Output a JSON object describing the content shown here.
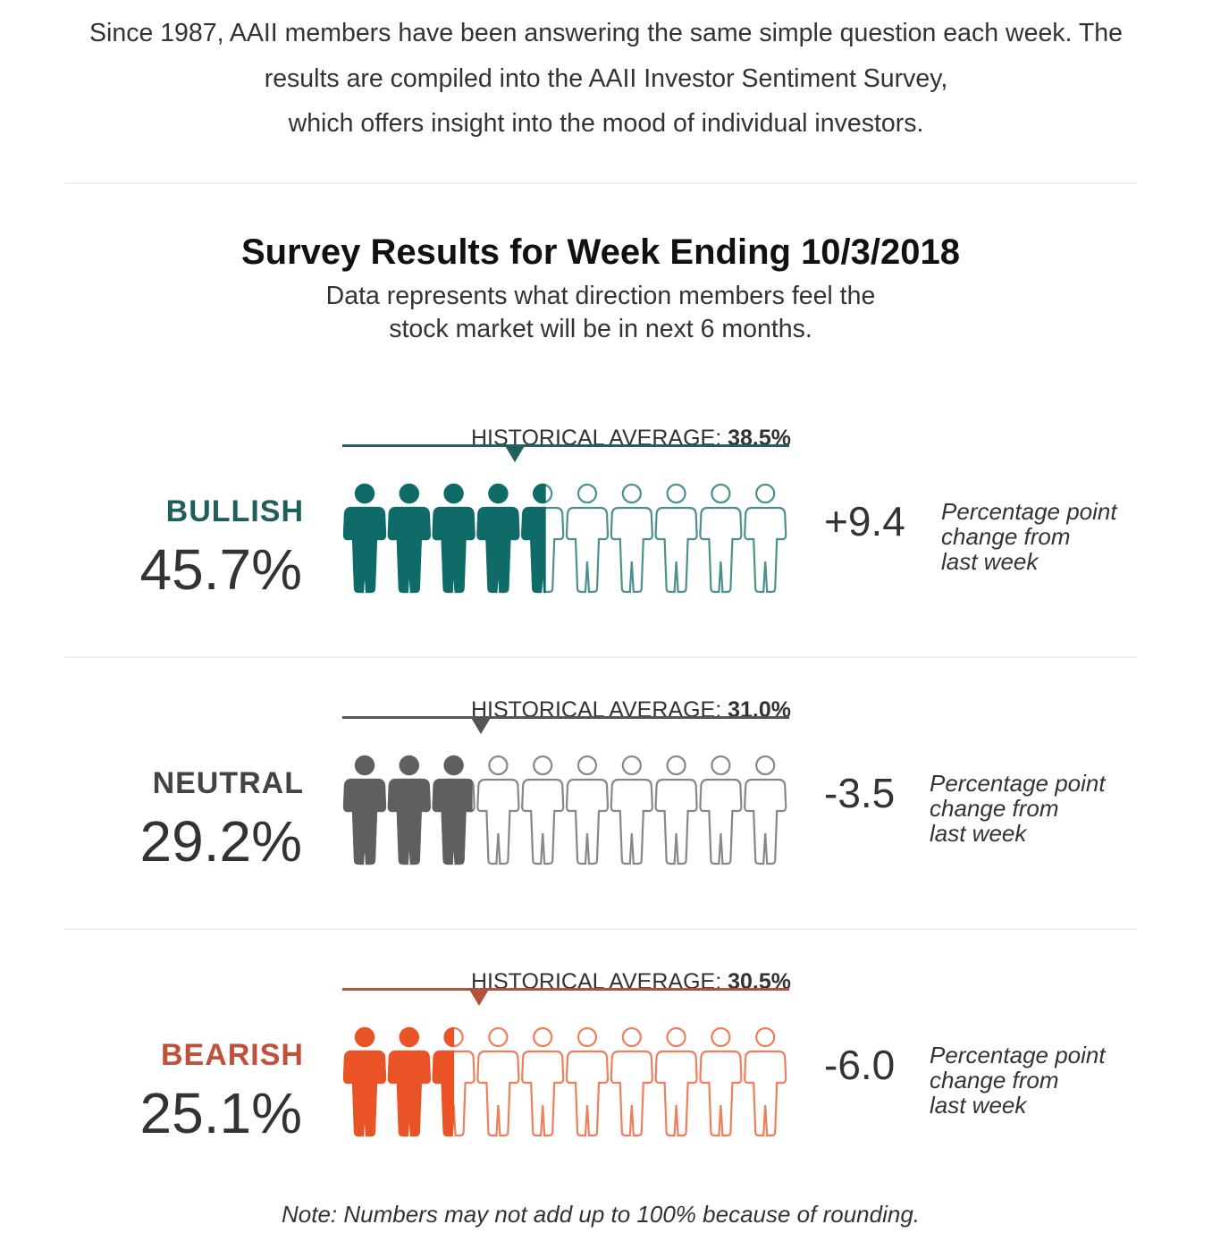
{
  "intro": {
    "line1": "Since 1987, AAII members have been answering the same simple question each week. The",
    "line2": "results are compiled into the AAII Investor Sentiment Survey,",
    "line3": "which offers insight into the mood of individual investors."
  },
  "title": "Survey Results for Week Ending 10/3/2018",
  "subtitle": {
    "line1": "Data represents what direction members feel the",
    "line2": "stock market will be in next 6 months."
  },
  "chart_data": {
    "type": "pictogram",
    "title": "Survey Results for Week Ending 10/3/2018",
    "figures_per_row": 10,
    "max_percent": 100,
    "series": [
      {
        "name": "BULLISH",
        "value": 45.7,
        "value_label": "45.7%",
        "historical_label": "HISTORICAL AVERAGE:",
        "historical_average": 38.5,
        "historical_value_label": "38.5%",
        "change": "+9.4",
        "change_desc": [
          "Percentage point",
          "change from",
          "last week"
        ],
        "color": "#0f6b68",
        "line_color": "#1f625d"
      },
      {
        "name": "NEUTRAL",
        "value": 29.2,
        "value_label": "29.2%",
        "historical_label": "HISTORICAL AVERAGE:",
        "historical_average": 31.0,
        "historical_value_label": "31.0%",
        "change": "-3.5",
        "change_desc": [
          "Percentage point",
          "change from",
          "last week"
        ],
        "color": "#5f5f5f",
        "line_color": "#555555"
      },
      {
        "name": "BEARISH",
        "value": 25.1,
        "value_label": "25.1%",
        "historical_label": "HISTORICAL AVERAGE:",
        "historical_average": 30.5,
        "historical_value_label": "30.5%",
        "change": "-6.0",
        "change_desc": [
          "Percentage point",
          "change from",
          "last week"
        ],
        "color": "#ea5326",
        "line_color": "#b4513d"
      }
    ]
  },
  "label_colors": [
    "#1e5f5a",
    "#444444",
    "#c0503a"
  ],
  "note": "Note: Numbers may not add up to 100% because of rounding."
}
